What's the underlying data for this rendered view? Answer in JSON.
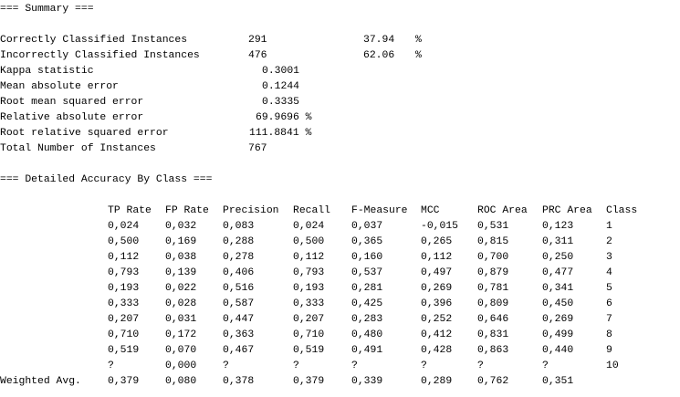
{
  "summary": {
    "title": "=== Summary ===",
    "rows": [
      {
        "label": "Correctly Classified Instances",
        "value": "291",
        "percent": "37.94",
        "unit": "%"
      },
      {
        "label": "Incorrectly Classified Instances",
        "value": "476",
        "percent": "62.06",
        "unit": "%"
      },
      {
        "label": "Kappa statistic",
        "value": "0.3001"
      },
      {
        "label": "Mean absolute error",
        "value": "0.1244"
      },
      {
        "label": "Root mean squared error",
        "value": "0.3335"
      },
      {
        "label": "Relative absolute error",
        "value": "69.9696 %"
      },
      {
        "label": "Root relative squared error",
        "value": "111.8841 %"
      },
      {
        "label": "Total Number of Instances",
        "value": "767"
      }
    ]
  },
  "accuracy": {
    "title": "=== Detailed Accuracy By Class ===",
    "columns": [
      "TP Rate",
      "FP Rate",
      "Precision",
      "Recall",
      "F-Measure",
      "MCC",
      "ROC Area",
      "PRC Area",
      "Class"
    ],
    "rows": [
      [
        "0,024",
        "0,032",
        "0,083",
        "0,024",
        "0,037",
        "-0,015",
        "0,531",
        "0,123",
        "1"
      ],
      [
        "0,500",
        "0,169",
        "0,288",
        "0,500",
        "0,365",
        "0,265",
        "0,815",
        "0,311",
        "2"
      ],
      [
        "0,112",
        "0,038",
        "0,278",
        "0,112",
        "0,160",
        "0,112",
        "0,700",
        "0,250",
        "3"
      ],
      [
        "0,793",
        "0,139",
        "0,406",
        "0,793",
        "0,537",
        "0,497",
        "0,879",
        "0,477",
        "4"
      ],
      [
        "0,193",
        "0,022",
        "0,516",
        "0,193",
        "0,281",
        "0,269",
        "0,781",
        "0,341",
        "5"
      ],
      [
        "0,333",
        "0,028",
        "0,587",
        "0,333",
        "0,425",
        "0,396",
        "0,809",
        "0,450",
        "6"
      ],
      [
        "0,207",
        "0,031",
        "0,447",
        "0,207",
        "0,283",
        "0,252",
        "0,646",
        "0,269",
        "7"
      ],
      [
        "0,710",
        "0,172",
        "0,363",
        "0,710",
        "0,480",
        "0,412",
        "0,831",
        "0,499",
        "8"
      ],
      [
        "0,519",
        "0,070",
        "0,467",
        "0,519",
        "0,491",
        "0,428",
        "0,863",
        "0,440",
        "9"
      ],
      [
        "?",
        "0,000",
        "?",
        "?",
        "?",
        "?",
        "?",
        "?",
        "10"
      ]
    ],
    "weighted": {
      "label": "Weighted Avg.",
      "values": [
        "0,379",
        "0,080",
        "0,378",
        "0,379",
        "0,339",
        "0,289",
        "0,762",
        "0,351"
      ]
    }
  }
}
